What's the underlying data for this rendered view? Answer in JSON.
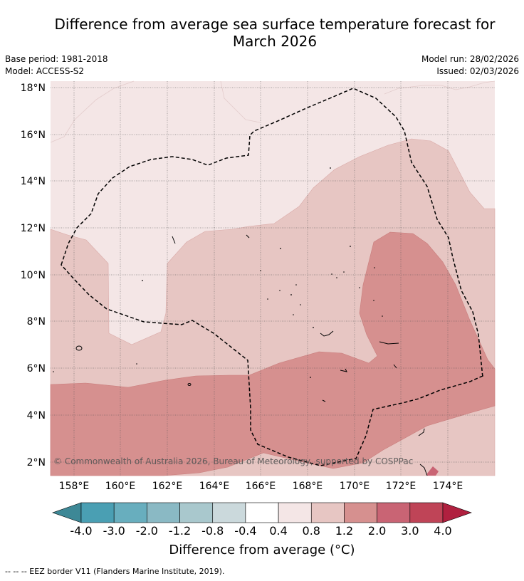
{
  "title_line1": "Difference from average sea surface temperature forecast for",
  "title_line2": "March 2026",
  "meta": {
    "base_period": "Base period: 1981-2018",
    "model": "Model: ACCESS-S2",
    "model_run": "Model run: 28/02/2026",
    "issued": "Issued: 02/03/2026"
  },
  "map": {
    "lat_labels": [
      "18°N",
      "16°N",
      "14°N",
      "12°N",
      "10°N",
      "8°N",
      "6°N",
      "4°N",
      "2°N"
    ],
    "lon_labels": [
      "158°E",
      "160°E",
      "162°E",
      "164°E",
      "166°E",
      "168°E",
      "170°E",
      "172°E",
      "174°E"
    ],
    "copyright": "© Commonwealth of Australia 2026, Bureau of Meteorology, supported by COSPPac"
  },
  "colorbar": {
    "labels": [
      "-4.0",
      "-3.0",
      "-2.0",
      "-1.2",
      "-0.8",
      "-0.4",
      "0.4",
      "0.8",
      "1.2",
      "2.0",
      "3.0",
      "4.0"
    ],
    "colors": [
      "#4a9fb3",
      "#68aebe",
      "#8ab9c4",
      "#a9c8cd",
      "#cbd9dc",
      "#ffffff",
      "#f4e6e6",
      "#e7c6c3",
      "#d6908f",
      "#c96474",
      "#bf4457"
    ],
    "under_color": "#3d8896",
    "over_color": "#b0203f",
    "title": "Difference from average (°C)"
  },
  "footer": "--  --  -- EEZ border V11 (Flanders Marine Institute, 2019)."
}
